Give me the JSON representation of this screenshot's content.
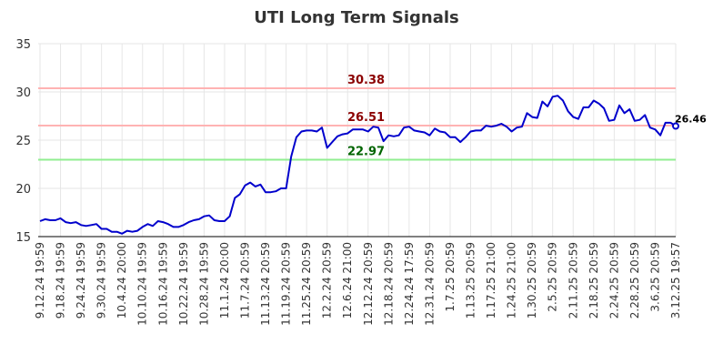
{
  "chart_data": {
    "type": "line",
    "title": "UTI Long Term Signals",
    "xlabel": "",
    "ylabel": "",
    "ylim": [
      15,
      35
    ],
    "yticks": [
      "15",
      "20",
      "25",
      "30",
      "35"
    ],
    "grid": true,
    "x_tick_labels": [
      "9.12.24 19:59",
      "9.18.24 19:59",
      "9.24.24 19:59",
      "9.30.24 19:59",
      "10.4.24 20:00",
      "10.10.24 19:59",
      "10.16.24 19:59",
      "10.22.24 19:59",
      "10.28.24 19:59",
      "11.1.24 20:00",
      "11.7.24 20:59",
      "11.13.24 20:59",
      "11.19.24 20:59",
      "11.25.24 20:59",
      "12.2.24 20:59",
      "12.6.24 21:00",
      "12.12.24 20:59",
      "12.18.24 20:59",
      "12.24.24 17:59",
      "12.31.24 20:59",
      "1.7.25 20:59",
      "1.13.25 20:59",
      "1.17.25 21:00",
      "1.24.25 21:00",
      "1.30.25 20:59",
      "2.5.25 20:59",
      "2.11.25 20:59",
      "2.18.25 20:59",
      "2.24.25 20:59",
      "2.28.25 20:59",
      "3.6.25 20:59",
      "3.12.25 19:57"
    ],
    "levels": [
      {
        "value": 30.38,
        "label": "30.38",
        "line_color": "#ffb3b3",
        "text_color": "#8b0000"
      },
      {
        "value": 26.51,
        "label": "26.51",
        "line_color": "#ffb3b3",
        "text_color": "#8b0000"
      },
      {
        "value": 22.97,
        "label": "22.97",
        "line_color": "#90ee90",
        "text_color": "#006400"
      }
    ],
    "series": [
      {
        "color": "#0000cc",
        "values": [
          16.6,
          16.8,
          16.7,
          16.7,
          16.9,
          16.5,
          16.4,
          16.5,
          16.2,
          16.1,
          16.2,
          16.3,
          15.8,
          15.8,
          15.5,
          15.5,
          15.3,
          15.6,
          15.5,
          15.6,
          16.0,
          16.3,
          16.1,
          16.6,
          16.5,
          16.3,
          16.0,
          16.0,
          16.2,
          16.5,
          16.7,
          16.8,
          17.1,
          17.2,
          16.7,
          16.6,
          16.6,
          17.1,
          19.0,
          19.4,
          20.3,
          20.6,
          20.2,
          20.4,
          19.6,
          19.6,
          19.7,
          20.0,
          20.0,
          23.3,
          25.3,
          25.9,
          26.0,
          26.0,
          25.9,
          26.3,
          24.2,
          24.8,
          25.4,
          25.6,
          25.7,
          26.1,
          26.1,
          26.1,
          25.9,
          26.4,
          26.3,
          24.9,
          25.5,
          25.4,
          25.5,
          26.3,
          26.4,
          26.0,
          25.9,
          25.8,
          25.5,
          26.2,
          25.9,
          25.8,
          25.3,
          25.3,
          24.8,
          25.3,
          25.9,
          26.0,
          26.0,
          26.5,
          26.4,
          26.5,
          26.7,
          26.4,
          25.9,
          26.3,
          26.4,
          27.8,
          27.4,
          27.3,
          29.0,
          28.5,
          29.5,
          29.6,
          29.1,
          28.0,
          27.4,
          27.2,
          28.4,
          28.4,
          29.1,
          28.8,
          28.3,
          27.0,
          27.1,
          28.6,
          27.8,
          28.2,
          27.0,
          27.1,
          27.6,
          26.3,
          26.1,
          25.5,
          26.8,
          26.8,
          26.46
        ]
      }
    ],
    "last_value": 26.46,
    "last_label": "26.46"
  }
}
